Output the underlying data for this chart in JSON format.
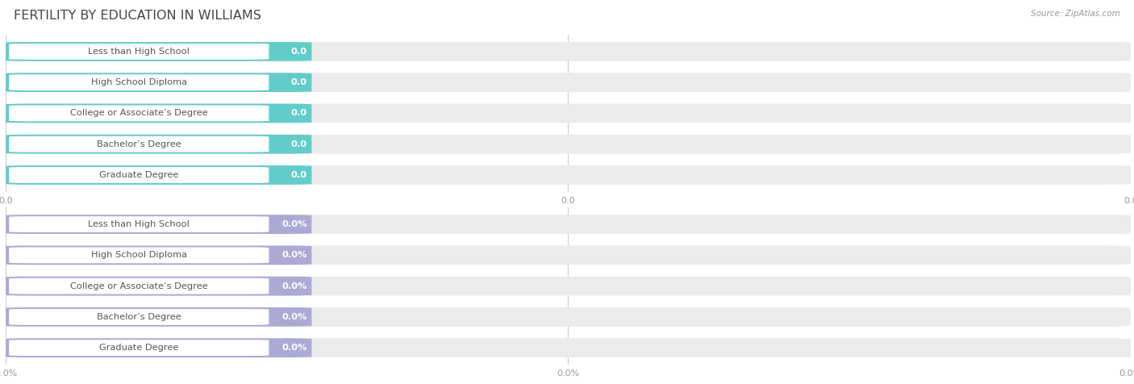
{
  "title": "FERTILITY BY EDUCATION IN WILLIAMS",
  "source": "Source: ZipAtlas.com",
  "categories": [
    "Less than High School",
    "High School Diploma",
    "College or Associate’s Degree",
    "Bachelor’s Degree",
    "Graduate Degree"
  ],
  "top_values": [
    0.0,
    0.0,
    0.0,
    0.0,
    0.0
  ],
  "bottom_values": [
    0.0,
    0.0,
    0.0,
    0.0,
    0.0
  ],
  "top_bar_color": "#62CCCA",
  "top_bar_bg": "#EBEBEB",
  "bottom_bar_color": "#AAAAD5",
  "bottom_bar_bg": "#EBEBEB",
  "label_text_color": "#555555",
  "value_text_color_top": "white",
  "value_text_color_bottom": "white",
  "title_color": "#444444",
  "source_color": "#999999",
  "background_color": "#FFFFFF",
  "xtick_label_color": "#999999",
  "grid_color": "#CCCCCC"
}
